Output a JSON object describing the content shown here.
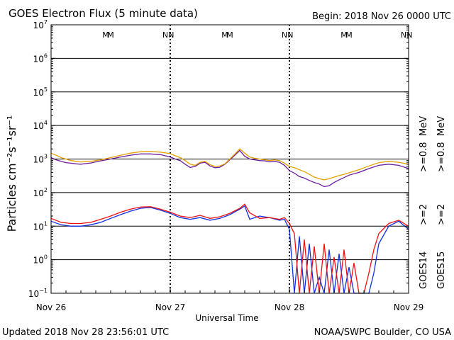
{
  "header": {
    "title": "GOES Electron Flux (5 minute data)",
    "begin": "Begin: 2018 Nov 26 0000 UTC"
  },
  "footer": {
    "updated": "Updated 2018 Nov 28 23:56:01 UTC",
    "credit": "NOAA/SWPC Boulder, CO USA"
  },
  "colors": {
    "g14_08": "#6a1fa0",
    "g15_08": "#e8a000",
    "g14_2": "#1030e0",
    "g15_2": "#ee1010",
    "threshold": "#000000"
  },
  "chart_data": {
    "type": "line",
    "title": "GOES Electron Flux (5 minute data)",
    "xlabel": "Universal Time",
    "ylabel": "Particles cm⁻²s⁻¹sr⁻¹",
    "yscale": "log",
    "ylim": [
      0.1,
      10000000
    ],
    "xlim": [
      0,
      72
    ],
    "x_unit": "hours since 2018 Nov 26 0000 UTC",
    "x_ticks": [
      {
        "x": 0,
        "label": "Nov 26"
      },
      {
        "x": 24,
        "label": "Nov 27"
      },
      {
        "x": 48,
        "label": "Nov 28"
      },
      {
        "x": 72,
        "label": "Nov 29"
      }
    ],
    "y_ticks": [
      {
        "exp": -1
      },
      {
        "exp": 0
      },
      {
        "exp": 1
      },
      {
        "exp": 2
      },
      {
        "exp": 3
      },
      {
        "exp": 4
      },
      {
        "exp": 5
      },
      {
        "exp": 6
      },
      {
        "exp": 7
      }
    ],
    "threshold": 1000,
    "local_time_markers": [
      {
        "label": "M",
        "color": "#1030e0",
        "x": 11.0
      },
      {
        "label": "M",
        "color": "#ee1010",
        "x": 12.0
      },
      {
        "label": "N",
        "color": "#1030e0",
        "x": 23.0
      },
      {
        "label": "N",
        "color": "#ee1010",
        "x": 24.2
      },
      {
        "label": "M",
        "color": "#1030e0",
        "x": 35.0
      },
      {
        "label": "M",
        "color": "#ee1010",
        "x": 36.0
      },
      {
        "label": "N",
        "color": "#1030e0",
        "x": 47.0
      },
      {
        "label": "N",
        "color": "#ee1010",
        "x": 48.2
      },
      {
        "label": "M",
        "color": "#1030e0",
        "x": 59.0
      },
      {
        "label": "M",
        "color": "#ee1010",
        "x": 60.0
      },
      {
        "label": "N",
        "color": "#1030e0",
        "x": 71.0
      },
      {
        "label": "N",
        "color": "#ee1010",
        "x": 72.2
      }
    ],
    "legend": {
      "goes14": "GOES14",
      "goes15": "GOES15",
      "g14_2": ">=2",
      "g15_2": ">=2",
      "g14_08": ">=0.8",
      "g15_08": ">=0.8",
      "unit": "MeV"
    },
    "series": [
      {
        "name": "GOES14 >=0.8 MeV",
        "color": "#6a1fa0",
        "x": [
          0,
          1,
          2,
          3,
          4,
          5,
          6,
          8,
          10,
          12,
          14,
          16,
          18,
          20,
          22,
          24,
          25,
          26,
          27,
          28,
          29,
          30,
          31,
          32,
          33,
          34,
          35,
          36,
          37,
          38,
          39,
          40,
          41,
          42,
          43,
          44,
          45,
          46,
          47,
          48,
          49,
          50,
          51,
          52,
          53,
          54,
          55,
          56,
          57,
          58,
          59,
          60,
          62,
          64,
          66,
          68,
          70,
          72
        ],
        "y": [
          1100,
          950,
          850,
          780,
          750,
          720,
          700,
          760,
          880,
          1000,
          1150,
          1300,
          1420,
          1420,
          1350,
          1150,
          1000,
          900,
          700,
          560,
          600,
          750,
          800,
          620,
          550,
          570,
          700,
          950,
          1300,
          1800,
          1200,
          1000,
          950,
          900,
          880,
          820,
          850,
          800,
          650,
          450,
          380,
          300,
          270,
          230,
          200,
          180,
          150,
          160,
          200,
          240,
          280,
          330,
          400,
          520,
          650,
          700,
          650,
          520
        ]
      },
      {
        "name": "GOES15 >=0.8 MeV",
        "color": "#e8a000",
        "x": [
          0,
          1,
          2,
          3,
          4,
          5,
          6,
          8,
          10,
          12,
          14,
          16,
          18,
          20,
          22,
          24,
          25,
          26,
          27,
          28,
          29,
          30,
          31,
          32,
          33,
          34,
          35,
          36,
          37,
          38,
          39,
          40,
          41,
          42,
          43,
          44,
          45,
          46,
          47,
          48,
          49,
          50,
          51,
          52,
          53,
          54,
          55,
          56,
          57,
          58,
          59,
          60,
          62,
          64,
          66,
          68,
          70,
          72
        ],
        "y": [
          1500,
          1300,
          1100,
          1000,
          900,
          850,
          820,
          850,
          950,
          1100,
          1300,
          1500,
          1650,
          1700,
          1600,
          1450,
          1250,
          1100,
          900,
          700,
          650,
          800,
          850,
          680,
          600,
          620,
          720,
          1000,
          1400,
          2000,
          1500,
          1150,
          1050,
          1000,
          950,
          900,
          950,
          900,
          750,
          600,
          550,
          480,
          420,
          350,
          290,
          260,
          240,
          260,
          290,
          320,
          350,
          390,
          480,
          620,
          780,
          850,
          800,
          700
        ]
      },
      {
        "name": "GOES14 >=2 MeV",
        "color": "#1030e0",
        "x": [
          0,
          2,
          4,
          6,
          8,
          10,
          12,
          14,
          16,
          18,
          20,
          22,
          24,
          26,
          28,
          30,
          32,
          34,
          36,
          38,
          39,
          40,
          42,
          44,
          46,
          47,
          48,
          49,
          50,
          51,
          52,
          53,
          54,
          55,
          56,
          57,
          58,
          59,
          60,
          61,
          62,
          63,
          64,
          65,
          66,
          68,
          70,
          72
        ],
        "y": [
          14,
          11,
          10,
          10,
          11,
          13,
          17,
          22,
          28,
          34,
          36,
          30,
          24,
          18,
          16,
          18,
          15,
          17,
          22,
          32,
          40,
          16,
          20,
          18,
          15,
          16,
          8,
          0.1,
          5,
          0.1,
          3,
          0.1,
          0.3,
          0.1,
          2,
          0.1,
          1.5,
          0.1,
          0.6,
          0.1,
          0.1,
          0.1,
          0.1,
          0.4,
          3,
          10,
          14,
          8
        ]
      },
      {
        "name": "GOES15 >=2 MeV",
        "color": "#ee1010",
        "x": [
          0,
          2,
          4,
          6,
          8,
          10,
          12,
          14,
          16,
          18,
          20,
          22,
          24,
          26,
          28,
          30,
          32,
          34,
          36,
          38,
          39,
          40,
          42,
          44,
          46,
          47,
          48,
          49,
          50,
          51,
          52,
          53,
          54,
          55,
          56,
          57,
          58,
          59,
          60,
          61,
          62,
          63,
          64,
          65,
          66,
          68,
          70,
          72
        ],
        "y": [
          17,
          13,
          12,
          12,
          13,
          16,
          20,
          26,
          32,
          37,
          38,
          32,
          26,
          20,
          18,
          21,
          17,
          19,
          24,
          34,
          45,
          25,
          17,
          18,
          16,
          18,
          12,
          6,
          0.1,
          4,
          0.1,
          2.5,
          0.1,
          3,
          0.1,
          1.2,
          0.1,
          2,
          0.1,
          0.8,
          0.1,
          0.1,
          0.4,
          2,
          6,
          12,
          15,
          10
        ]
      }
    ]
  }
}
